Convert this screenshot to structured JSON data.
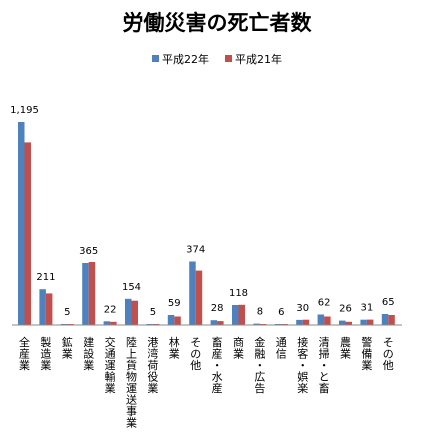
{
  "chart_data": {
    "type": "bar",
    "title": "労働災害の死亡者数",
    "xlabel": "",
    "ylabel": "",
    "ylim": [
      0,
      1300
    ],
    "grid": false,
    "legend_position": "top",
    "categories": [
      "全産業",
      "製造業",
      "鉱業",
      "建設業",
      "交通運輸業",
      "陸上貨物運送事業",
      "港湾荷役業",
      "林業",
      "その他",
      "畜産・水産",
      "商業",
      "金融・広告",
      "通信",
      "接客・娯楽",
      "清掃・と畜",
      "農業",
      "警備業",
      "その他"
    ],
    "series": [
      {
        "name": "平成22年",
        "color": "#4f81bd",
        "values": [
          1195,
          211,
          5,
          365,
          22,
          154,
          5,
          59,
          374,
          28,
          118,
          8,
          6,
          30,
          62,
          26,
          31,
          65
        ]
      },
      {
        "name": "平成21年",
        "color": "#c0504d",
        "values": [
          1075,
          186,
          3,
          371,
          19,
          143,
          3,
          50,
          320,
          23,
          119,
          5,
          3,
          31,
          50,
          19,
          32,
          59
        ]
      }
    ],
    "data_labels": [
      "1,195",
      "211",
      "5",
      "365",
      "22",
      "154",
      "5",
      "59",
      "374",
      "28",
      "118",
      "8",
      "6",
      "30",
      "62",
      "26",
      "31",
      "65"
    ]
  }
}
